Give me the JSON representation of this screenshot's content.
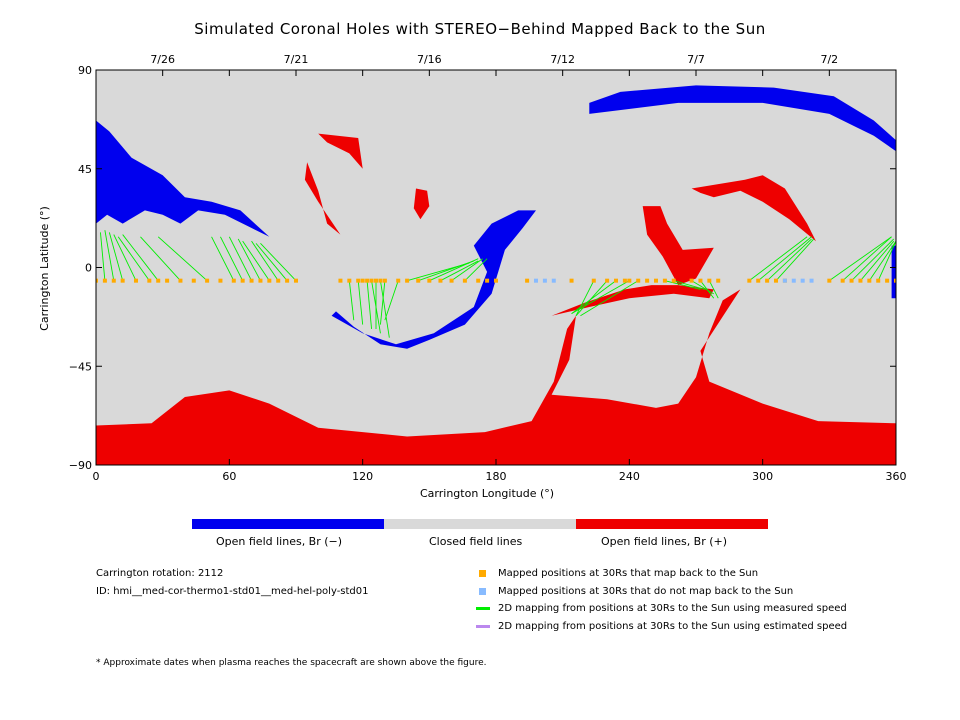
{
  "chart_data": {
    "type": "map",
    "title": "Simulated Coronal Holes with STEREO−Behind Mapped Back to the Sun",
    "xlabel": "Carrington Longitude (°)",
    "ylabel": "Carrington Latitude (°)",
    "xlim": [
      0,
      360
    ],
    "ylim": [
      -90,
      90
    ],
    "x_ticks": [
      "0",
      "60",
      "120",
      "180",
      "240",
      "300",
      "360"
    ],
    "y_ticks": [
      "90",
      "45",
      "0",
      "−45",
      "−90"
    ],
    "top_axis_dates": [
      {
        "label": "7/26",
        "lon": 30
      },
      {
        "label": "7/21",
        "lon": 90
      },
      {
        "label": "7/16",
        "lon": 150
      },
      {
        "label": "7/12",
        "lon": 210
      },
      {
        "label": "7/7",
        "lon": 270
      },
      {
        "label": "7/2",
        "lon": 330
      }
    ],
    "background_color": "#d9d9d9",
    "colors": {
      "negative": "#0000ee",
      "closed": "#d9d9d9",
      "positive": "#ee0000",
      "mapped": "#ffaa00",
      "unmapped": "#88bbff",
      "measured": "#00ee00",
      "estimated": "#bb88ee"
    },
    "regions": [
      {
        "polarity": "negative",
        "points": [
          [
            0,
            67
          ],
          [
            6,
            62
          ],
          [
            16,
            50
          ],
          [
            30,
            42
          ],
          [
            40,
            32
          ],
          [
            52,
            30
          ],
          [
            65,
            26
          ],
          [
            78,
            14
          ],
          [
            70,
            18
          ],
          [
            58,
            24
          ],
          [
            46,
            26
          ],
          [
            38,
            20
          ],
          [
            30,
            24
          ],
          [
            22,
            26
          ],
          [
            12,
            20
          ],
          [
            5,
            24
          ],
          [
            0,
            20
          ]
        ]
      },
      {
        "polarity": "negative",
        "points": [
          [
            222,
            75
          ],
          [
            236,
            80
          ],
          [
            270,
            83
          ],
          [
            305,
            82
          ],
          [
            332,
            78
          ],
          [
            350,
            67
          ],
          [
            360,
            58
          ],
          [
            360,
            53
          ],
          [
            350,
            60
          ],
          [
            330,
            70
          ],
          [
            300,
            75
          ],
          [
            262,
            75
          ],
          [
            238,
            72
          ],
          [
            222,
            70
          ]
        ]
      },
      {
        "polarity": "negative",
        "points": [
          [
            170,
            10
          ],
          [
            178,
            20
          ],
          [
            190,
            26
          ],
          [
            198,
            26
          ],
          [
            192,
            18
          ],
          [
            184,
            8
          ],
          [
            178,
            -12
          ],
          [
            166,
            -26
          ],
          [
            150,
            -33
          ],
          [
            140,
            -37
          ],
          [
            128,
            -35
          ],
          [
            116,
            -27
          ],
          [
            108,
            -20
          ],
          [
            106,
            -22
          ],
          [
            120,
            -30
          ],
          [
            135,
            -35
          ],
          [
            152,
            -30
          ],
          [
            170,
            -18
          ],
          [
            176,
            -2
          ]
        ]
      },
      {
        "polarity": "negative",
        "points": [
          [
            358,
            10
          ],
          [
            360,
            10
          ],
          [
            360,
            -14
          ],
          [
            358,
            -14
          ]
        ]
      },
      {
        "polarity": "positive",
        "points": [
          [
            0,
            -72
          ],
          [
            25,
            -71
          ],
          [
            40,
            -59
          ],
          [
            60,
            -56
          ],
          [
            78,
            -62
          ],
          [
            100,
            -73
          ],
          [
            140,
            -77
          ],
          [
            175,
            -75
          ],
          [
            196,
            -70
          ],
          [
            206,
            -52
          ],
          [
            212,
            -28
          ],
          [
            216,
            -22
          ],
          [
            213,
            -42
          ],
          [
            205,
            -58
          ],
          [
            230,
            -60
          ],
          [
            252,
            -64
          ],
          [
            262,
            -62
          ],
          [
            270,
            -50
          ],
          [
            276,
            -30
          ],
          [
            282,
            -15
          ],
          [
            290,
            -10
          ],
          [
            272,
            -38
          ],
          [
            276,
            -52
          ],
          [
            300,
            -62
          ],
          [
            325,
            -70
          ],
          [
            360,
            -71
          ],
          [
            360,
            -90
          ],
          [
            0,
            -90
          ]
        ]
      },
      {
        "polarity": "positive",
        "points": [
          [
            100,
            61
          ],
          [
            118,
            59
          ],
          [
            120,
            45
          ],
          [
            114,
            52
          ],
          [
            104,
            57
          ]
        ]
      },
      {
        "polarity": "positive",
        "points": [
          [
            95,
            48
          ],
          [
            100,
            35
          ],
          [
            104,
            20
          ],
          [
            110,
            15
          ],
          [
            100,
            30
          ],
          [
            94,
            40
          ]
        ]
      },
      {
        "polarity": "positive",
        "points": [
          [
            144,
            36
          ],
          [
            149,
            35
          ],
          [
            150,
            28
          ],
          [
            146,
            22
          ],
          [
            143,
            27
          ]
        ]
      },
      {
        "polarity": "positive",
        "points": [
          [
            246,
            28
          ],
          [
            254,
            28
          ],
          [
            257,
            20
          ],
          [
            264,
            8
          ],
          [
            278,
            9
          ],
          [
            270,
            -5
          ],
          [
            262,
            -8
          ],
          [
            255,
            5
          ],
          [
            248,
            15
          ]
        ]
      },
      {
        "polarity": "positive",
        "points": [
          [
            268,
            36
          ],
          [
            292,
            40
          ],
          [
            300,
            42
          ],
          [
            310,
            36
          ],
          [
            320,
            20
          ],
          [
            324,
            12
          ],
          [
            312,
            22
          ],
          [
            300,
            30
          ],
          [
            290,
            35
          ],
          [
            278,
            32
          ],
          [
            272,
            34
          ]
        ]
      },
      {
        "polarity": "positive",
        "points": [
          [
            205,
            -22
          ],
          [
            220,
            -16
          ],
          [
            238,
            -10
          ],
          [
            250,
            -8
          ],
          [
            262,
            -8
          ],
          [
            278,
            -10
          ],
          [
            276,
            -14
          ],
          [
            260,
            -12
          ],
          [
            240,
            -14
          ],
          [
            222,
            -18
          ]
        ]
      }
    ],
    "mapped_points": {
      "lat": -6,
      "lon": [
        0,
        4,
        8,
        12,
        18,
        24,
        28,
        32,
        38,
        44,
        50,
        56,
        62,
        66,
        70,
        74,
        78,
        82,
        86,
        90,
        110,
        114,
        118,
        120,
        122,
        124,
        126,
        128,
        130,
        136,
        140,
        145,
        150,
        155,
        160,
        166,
        172,
        176,
        180,
        194,
        214,
        224,
        230,
        234,
        238,
        240,
        244,
        248,
        252,
        256,
        260,
        268,
        272,
        276,
        280,
        294,
        298,
        302,
        306,
        310,
        330,
        336,
        340,
        344,
        348,
        352,
        356,
        360
      ]
    },
    "unmapped_points": {
      "lat": -6,
      "lon": [
        198,
        202,
        206,
        310,
        314,
        318,
        322
      ]
    },
    "mapping_lines": [
      {
        "from": [
          4,
          -6
        ],
        "to": [
          2,
          16
        ]
      },
      {
        "from": [
          8,
          -6
        ],
        "to": [
          4,
          17
        ]
      },
      {
        "from": [
          12,
          -6
        ],
        "to": [
          6,
          16
        ]
      },
      {
        "from": [
          18,
          -6
        ],
        "to": [
          8,
          15
        ]
      },
      {
        "from": [
          24,
          -6
        ],
        "to": [
          10,
          14
        ]
      },
      {
        "from": [
          28,
          -6
        ],
        "to": [
          12,
          15
        ]
      },
      {
        "from": [
          38,
          -6
        ],
        "to": [
          20,
          14
        ]
      },
      {
        "from": [
          50,
          -6
        ],
        "to": [
          28,
          14
        ]
      },
      {
        "from": [
          62,
          -6
        ],
        "to": [
          52,
          14
        ]
      },
      {
        "from": [
          66,
          -6
        ],
        "to": [
          56,
          14
        ]
      },
      {
        "from": [
          70,
          -6
        ],
        "to": [
          60,
          14
        ]
      },
      {
        "from": [
          74,
          -6
        ],
        "to": [
          64,
          13
        ]
      },
      {
        "from": [
          78,
          -6
        ],
        "to": [
          66,
          12
        ]
      },
      {
        "from": [
          82,
          -6
        ],
        "to": [
          70,
          12
        ]
      },
      {
        "from": [
          86,
          -6
        ],
        "to": [
          72,
          11
        ]
      },
      {
        "from": [
          90,
          -6
        ],
        "to": [
          74,
          11
        ]
      },
      {
        "from": [
          114,
          -6
        ],
        "to": [
          116,
          -24
        ]
      },
      {
        "from": [
          118,
          -6
        ],
        "to": [
          120,
          -26
        ]
      },
      {
        "from": [
          122,
          -6
        ],
        "to": [
          124,
          -28
        ]
      },
      {
        "from": [
          124,
          -6
        ],
        "to": [
          128,
          -30
        ]
      },
      {
        "from": [
          126,
          -6
        ],
        "to": [
          126,
          -28
        ]
      },
      {
        "from": [
          128,
          -6
        ],
        "to": [
          132,
          -32
        ]
      },
      {
        "from": [
          130,
          -6
        ],
        "to": [
          128,
          -26
        ]
      },
      {
        "from": [
          136,
          -6
        ],
        "to": [
          130,
          -24
        ]
      },
      {
        "from": [
          140,
          -6
        ],
        "to": [
          168,
          2
        ]
      },
      {
        "from": [
          145,
          -6
        ],
        "to": [
          170,
          3
        ]
      },
      {
        "from": [
          150,
          -6
        ],
        "to": [
          172,
          4
        ]
      },
      {
        "from": [
          155,
          -6
        ],
        "to": [
          172,
          3
        ]
      },
      {
        "from": [
          160,
          -6
        ],
        "to": [
          174,
          4
        ]
      },
      {
        "from": [
          166,
          -6
        ],
        "to": [
          176,
          4
        ]
      },
      {
        "from": [
          224,
          -6
        ],
        "to": [
          216,
          -22
        ]
      },
      {
        "from": [
          230,
          -6
        ],
        "to": [
          216,
          -22
        ]
      },
      {
        "from": [
          234,
          -6
        ],
        "to": [
          214,
          -21
        ]
      },
      {
        "from": [
          240,
          -6
        ],
        "to": [
          214,
          -21
        ]
      },
      {
        "from": [
          244,
          -6
        ],
        "to": [
          218,
          -22
        ]
      },
      {
        "from": [
          256,
          -6
        ],
        "to": [
          272,
          -10
        ]
      },
      {
        "from": [
          260,
          -6
        ],
        "to": [
          274,
          -10
        ]
      },
      {
        "from": [
          268,
          -6
        ],
        "to": [
          278,
          -12
        ]
      },
      {
        "from": [
          272,
          -6
        ],
        "to": [
          278,
          -14
        ]
      },
      {
        "from": [
          276,
          -6
        ],
        "to": [
          280,
          -14
        ]
      },
      {
        "from": [
          294,
          -6
        ],
        "to": [
          320,
          14
        ]
      },
      {
        "from": [
          298,
          -6
        ],
        "to": [
          322,
          14
        ]
      },
      {
        "from": [
          302,
          -6
        ],
        "to": [
          322,
          13
        ]
      },
      {
        "from": [
          306,
          -6
        ],
        "to": [
          323,
          13
        ]
      },
      {
        "from": [
          330,
          -6
        ],
        "to": [
          358,
          14
        ]
      },
      {
        "from": [
          336,
          -6
        ],
        "to": [
          358,
          14
        ]
      },
      {
        "from": [
          340,
          -6
        ],
        "to": [
          359,
          13
        ]
      },
      {
        "from": [
          344,
          -6
        ],
        "to": [
          359,
          12
        ]
      },
      {
        "from": [
          348,
          -6
        ],
        "to": [
          360,
          12
        ]
      },
      {
        "from": [
          352,
          -6
        ],
        "to": [
          360,
          12
        ]
      }
    ]
  },
  "colorbar": {
    "labels": [
      "Open field lines, Br (−)",
      "Closed field lines",
      "Open field lines, Br (+)"
    ]
  },
  "info": {
    "rotation": "Carrington rotation: 2112",
    "id": "ID: hmi__med-cor-thermo1-std01__med-hel-poly-std01"
  },
  "legend": [
    {
      "kind": "square",
      "color": "#ffaa00",
      "label": "Mapped positions at 30Rs that map back to the Sun"
    },
    {
      "kind": "square",
      "color": "#88bbff",
      "label": "Mapped positions at 30Rs that do not map back to the Sun"
    },
    {
      "kind": "line",
      "color": "#00ee00",
      "label": "2D mapping from positions at 30Rs to the Sun using measured speed"
    },
    {
      "kind": "line",
      "color": "#bb88ee",
      "label": "2D mapping from positions at 30Rs to the Sun using estimated speed"
    }
  ],
  "footnote": "* Approximate dates when plasma reaches the spacecraft are shown above the figure."
}
